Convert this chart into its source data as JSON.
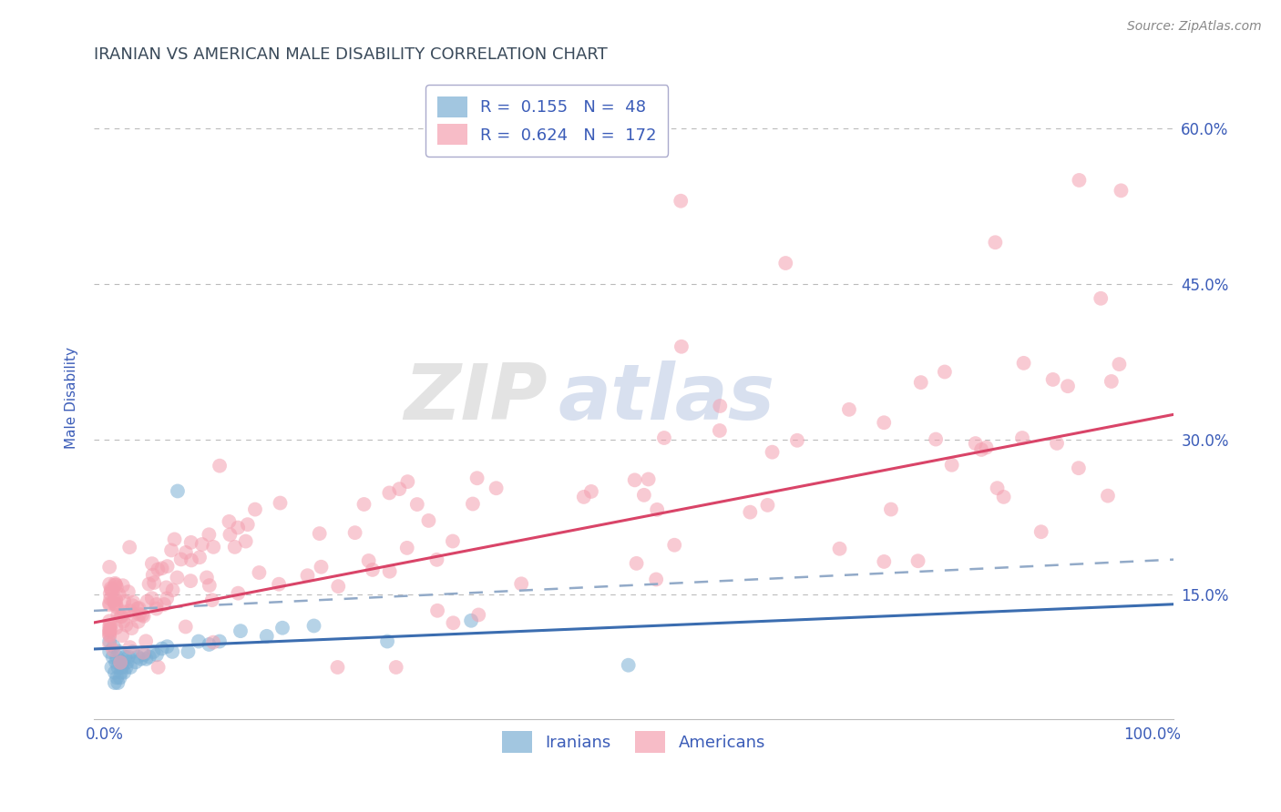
{
  "title": "IRANIAN VS AMERICAN MALE DISABILITY CORRELATION CHART",
  "source": "Source: ZipAtlas.com",
  "ylabel": "Male Disability",
  "ylim": [
    0.03,
    0.65
  ],
  "xlim": [
    -0.01,
    1.02
  ],
  "iranians_R": 0.155,
  "iranians_N": 48,
  "americans_R": 0.624,
  "americans_N": 172,
  "blue_color": "#7BAFD4",
  "pink_color": "#F4A0B0",
  "blue_line_color": "#3B6DB0",
  "pink_line_color": "#D94468",
  "dashed_line_color": "#92AAC8",
  "title_color": "#3A4A5A",
  "axis_label_color": "#3B5CB8",
  "tick_color": "#3B5CB8",
  "grid_color": "#BBBBBB",
  "background_color": "#FFFFFF",
  "watermark_zip": "ZIP",
  "watermark_atlas": "atlas",
  "legend_edge_color": "#AAAACC",
  "yticks": [
    0.15,
    0.3,
    0.45,
    0.6
  ],
  "ytick_labels": [
    "15.0%",
    "30.0%",
    "45.0%",
    "60.0%"
  ],
  "xticks": [
    0.0,
    1.0
  ],
  "xtick_labels": [
    "0.0%",
    "100.0%"
  ]
}
